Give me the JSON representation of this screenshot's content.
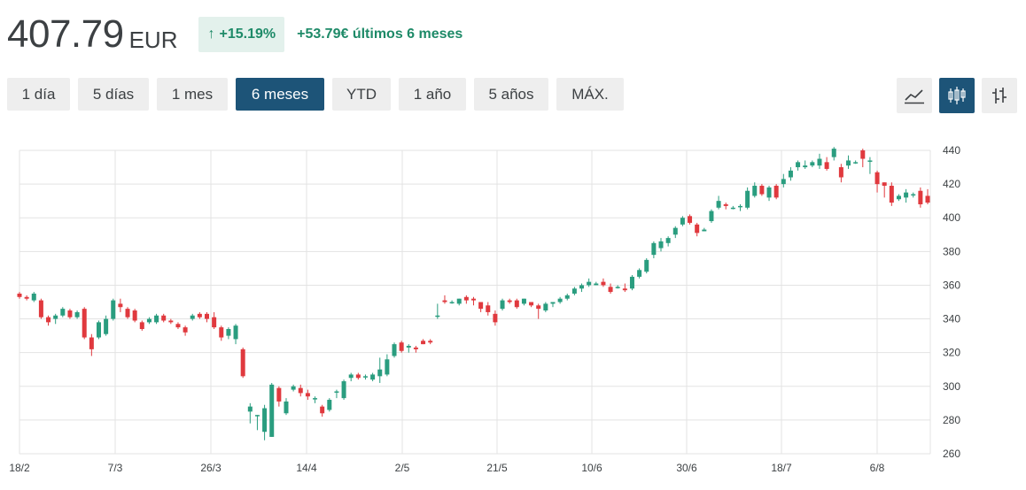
{
  "quote": {
    "price": "407.79",
    "currency": "EUR",
    "change_pct": "+15.19%",
    "change_text": "+53.79€ últimos 6 meses",
    "colors": {
      "positive": "#1e8a68",
      "positive_bg": "#e3f1ec"
    }
  },
  "ranges": [
    {
      "label": "1 día",
      "active": false
    },
    {
      "label": "5 días",
      "active": false
    },
    {
      "label": "1 mes",
      "active": false
    },
    {
      "label": "6 meses",
      "active": true
    },
    {
      "label": "YTD",
      "active": false
    },
    {
      "label": "1 año",
      "active": false
    },
    {
      "label": "5 años",
      "active": false
    },
    {
      "label": "MÁX.",
      "active": false
    }
  ],
  "chart_tools": [
    {
      "icon": "line-chart-icon",
      "active": false
    },
    {
      "icon": "candlestick-icon",
      "active": true
    },
    {
      "icon": "compare-icon",
      "active": false
    }
  ],
  "chart_data": {
    "type": "candlestick",
    "y_ticks": [
      260,
      280,
      300,
      320,
      340,
      360,
      380,
      400,
      420,
      440
    ],
    "ylim": [
      260,
      440
    ],
    "x_ticks": [
      "18/2",
      "7/3",
      "26/3",
      "14/4",
      "2/5",
      "21/5",
      "10/6",
      "30/6",
      "18/7",
      "6/8"
    ],
    "grid": true,
    "colors": {
      "up": "#2a9d7f",
      "down": "#e0393e",
      "grid": "#e3e3e3"
    },
    "candles": [
      [
        355,
        353,
        356,
        352
      ],
      [
        353,
        352,
        354,
        351
      ],
      [
        351,
        355,
        356,
        350
      ],
      [
        351,
        341,
        352,
        340
      ],
      [
        341,
        338,
        342,
        336
      ],
      [
        340,
        342,
        343,
        337
      ],
      [
        342,
        346,
        347,
        341
      ],
      [
        345,
        341,
        346,
        340
      ],
      [
        341,
        344,
        345,
        340
      ],
      [
        346,
        329,
        347,
        328
      ],
      [
        329,
        322,
        331,
        318
      ],
      [
        329,
        338,
        339,
        328
      ],
      [
        331,
        340,
        342,
        330
      ],
      [
        340,
        351,
        352,
        339
      ],
      [
        349,
        347,
        352,
        344
      ],
      [
        346,
        341,
        347,
        340
      ],
      [
        345,
        339,
        346,
        338
      ],
      [
        338,
        334,
        339,
        333
      ],
      [
        338,
        340,
        341,
        337
      ],
      [
        338,
        342,
        343,
        337
      ],
      [
        342,
        339,
        343,
        338
      ],
      [
        339,
        338,
        340,
        337
      ],
      [
        337,
        335,
        338,
        334
      ],
      [
        335,
        332,
        336,
        330
      ],
      [
        340,
        342,
        343,
        339
      ],
      [
        343,
        341,
        344,
        340
      ],
      [
        343,
        340,
        344,
        338
      ],
      [
        341,
        335,
        344,
        334
      ],
      [
        335,
        329,
        336,
        327
      ],
      [
        330,
        334,
        335,
        328
      ],
      [
        328,
        336,
        337,
        325
      ],
      [
        322,
        306,
        323,
        305
      ],
      [
        285,
        288,
        290,
        278
      ],
      [
        283,
        283,
        283,
        274
      ],
      [
        273,
        287,
        289,
        268
      ],
      [
        270,
        301,
        302,
        270
      ],
      [
        299,
        291,
        300,
        288
      ],
      [
        284,
        291,
        293,
        283
      ],
      [
        298,
        300,
        301,
        297
      ],
      [
        299,
        296,
        301,
        294
      ],
      [
        296,
        294,
        298,
        292
      ],
      [
        293,
        293,
        294,
        290
      ],
      [
        288,
        284,
        289,
        282
      ],
      [
        286,
        292,
        293,
        285
      ],
      [
        297,
        297,
        298,
        293
      ],
      [
        293,
        303,
        304,
        292
      ],
      [
        305,
        307,
        308,
        303
      ],
      [
        307,
        305,
        308,
        304
      ],
      [
        306,
        306,
        307,
        304
      ],
      [
        304,
        307,
        308,
        303
      ],
      [
        306,
        310,
        317,
        302
      ],
      [
        307,
        316,
        319,
        306
      ],
      [
        318,
        325,
        326,
        317
      ],
      [
        326,
        321,
        327,
        320
      ],
      [
        323,
        324,
        325,
        320
      ],
      [
        323,
        322,
        324,
        320
      ],
      [
        327,
        325,
        328,
        325
      ],
      [
        327,
        326,
        328,
        325
      ],
      [
        342,
        342,
        349,
        340
      ],
      [
        351,
        350,
        354,
        349
      ],
      [
        350,
        350,
        351,
        349
      ],
      [
        349,
        352,
        352,
        348
      ],
      [
        353,
        351,
        354,
        349
      ],
      [
        352,
        351,
        353,
        348
      ],
      [
        350,
        346,
        350,
        344
      ],
      [
        348,
        344,
        350,
        342
      ],
      [
        343,
        338,
        345,
        336
      ],
      [
        346,
        351,
        352,
        345
      ],
      [
        351,
        350,
        352,
        349
      ],
      [
        351,
        347,
        352,
        346
      ],
      [
        349,
        352,
        352,
        348
      ],
      [
        350,
        348,
        350,
        347
      ],
      [
        348,
        346,
        349,
        340
      ],
      [
        345,
        349,
        350,
        344
      ],
      [
        349,
        350,
        350,
        347
      ],
      [
        350,
        352,
        353,
        349
      ],
      [
        352,
        354,
        355,
        351
      ],
      [
        355,
        358,
        359,
        354
      ],
      [
        358,
        360,
        361,
        356
      ],
      [
        360,
        362,
        364,
        359
      ],
      [
        360,
        361,
        362,
        360
      ],
      [
        362,
        360,
        364,
        359
      ],
      [
        359,
        356,
        361,
        355
      ],
      [
        359,
        359,
        360,
        358
      ],
      [
        358,
        357,
        361,
        356
      ],
      [
        358,
        365,
        366,
        357
      ],
      [
        365,
        369,
        370,
        364
      ],
      [
        368,
        375,
        376,
        367
      ],
      [
        378,
        385,
        386,
        376
      ],
      [
        382,
        386,
        388,
        380
      ],
      [
        385,
        388,
        389,
        383
      ],
      [
        390,
        394,
        395,
        388
      ],
      [
        396,
        400,
        401,
        395
      ],
      [
        401,
        397,
        402,
        396
      ],
      [
        396,
        391,
        397,
        389
      ],
      [
        392,
        393,
        394,
        392
      ],
      [
        398,
        404,
        405,
        397
      ],
      [
        406,
        410,
        413,
        405
      ],
      [
        408,
        407,
        409,
        405
      ],
      [
        406,
        406,
        407,
        405
      ],
      [
        407,
        407,
        408,
        404
      ],
      [
        406,
        416,
        418,
        405
      ],
      [
        413,
        419,
        421,
        412
      ],
      [
        419,
        414,
        420,
        413
      ],
      [
        412,
        418,
        419,
        410
      ],
      [
        419,
        412,
        420,
        411
      ],
      [
        420,
        423,
        426,
        418
      ],
      [
        424,
        428,
        430,
        422
      ],
      [
        430,
        433,
        434,
        428
      ],
      [
        430,
        431,
        434,
        429
      ],
      [
        431,
        433,
        434,
        430
      ],
      [
        431,
        435,
        438,
        429
      ],
      [
        433,
        429,
        436,
        428
      ],
      [
        436,
        441,
        442,
        434
      ],
      [
        430,
        424,
        432,
        421
      ],
      [
        431,
        434,
        437,
        429
      ],
      [
        433,
        433,
        434,
        432
      ],
      [
        440,
        435,
        441,
        430
      ],
      [
        434,
        434,
        436,
        426
      ],
      [
        427,
        420,
        428,
        415
      ],
      [
        421,
        419,
        421,
        412
      ],
      [
        419,
        409,
        421,
        407
      ],
      [
        411,
        413,
        414,
        410
      ],
      [
        412,
        415,
        417,
        409
      ],
      [
        414,
        414,
        415,
        412
      ],
      [
        416,
        408,
        418,
        406
      ],
      [
        413,
        409,
        417,
        408
      ]
    ]
  }
}
